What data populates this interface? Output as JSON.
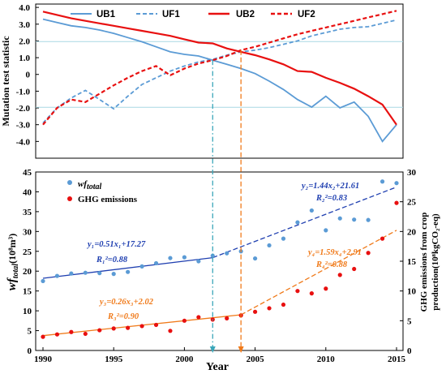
{
  "chart_data": [
    {
      "type": "line",
      "ylabel": "Mutation test statistic",
      "ylim": [
        -5,
        4.2
      ],
      "yticks": [
        "4.0",
        "3.0",
        "2.0",
        "1.0",
        "0",
        "-1.0",
        "-2.0",
        "-3.0",
        "-4.0"
      ],
      "yticks_values": [
        4,
        3,
        2,
        1,
        0,
        -1,
        -2,
        -3,
        -4
      ],
      "critical_lines": [
        1.96,
        -1.96
      ],
      "x": [
        1990,
        1991,
        1992,
        1993,
        1994,
        1995,
        1996,
        1997,
        1998,
        1999,
        2000,
        2001,
        2002,
        2003,
        2004,
        2005,
        2006,
        2007,
        2008,
        2009,
        2010,
        2011,
        2012,
        2013,
        2014,
        2015
      ],
      "legend_position": "top",
      "series": [
        {
          "name": "UB1",
          "color": "#5b9bd5",
          "dash": false,
          "values": [
            3.3,
            3.1,
            2.9,
            2.8,
            2.65,
            2.45,
            2.2,
            1.95,
            1.65,
            1.35,
            1.2,
            1.1,
            0.85,
            0.6,
            0.35,
            0.05,
            -0.4,
            -0.9,
            -1.5,
            -1.95,
            -1.3,
            -2.0,
            -1.65,
            -2.5,
            -4.0,
            -3.0
          ]
        },
        {
          "name": "UF1",
          "color": "#5b9bd5",
          "dash": true,
          "values": [
            -2.9,
            -2.0,
            -1.4,
            -0.95,
            -1.5,
            -2.05,
            -1.3,
            -0.6,
            -0.2,
            0.2,
            0.5,
            0.75,
            0.9,
            1.15,
            1.35,
            1.45,
            1.6,
            1.8,
            2.0,
            2.3,
            2.5,
            2.7,
            2.8,
            2.85,
            3.05,
            3.25
          ]
        },
        {
          "name": "UB2",
          "color": "#e81010",
          "dash": false,
          "values": [
            3.75,
            3.55,
            3.35,
            3.2,
            3.05,
            2.9,
            2.75,
            2.6,
            2.45,
            2.3,
            2.1,
            1.9,
            1.85,
            1.55,
            1.35,
            1.15,
            0.9,
            0.6,
            0.2,
            0.15,
            -0.2,
            -0.5,
            -0.85,
            -1.3,
            -1.8,
            -3.0
          ]
        },
        {
          "name": "UF2",
          "color": "#e81010",
          "dash": true,
          "values": [
            -3.0,
            -2.0,
            -1.5,
            -1.65,
            -1.15,
            -0.65,
            -0.2,
            0.2,
            0.5,
            -0.05,
            0.35,
            0.65,
            0.85,
            1.1,
            1.45,
            1.65,
            1.9,
            2.15,
            2.4,
            2.6,
            2.8,
            3.0,
            3.2,
            3.4,
            3.6,
            3.8
          ]
        }
      ]
    },
    {
      "type": "scatter",
      "xlabel": "Year",
      "xlim": [
        1990,
        2015
      ],
      "xticks": [
        1990,
        1995,
        2000,
        2005,
        2010,
        2015
      ],
      "ylabel_main": "wf",
      "ylabel_sub": "total",
      "ylabel_unit": "(10⁸m³)",
      "ylim": [
        0,
        45
      ],
      "yticks": [
        0,
        5,
        10,
        15,
        20,
        25,
        30,
        35,
        40,
        45
      ],
      "y2label_line1": "GHG emissions from crop",
      "y2label_line2": "production(10⁸kgCO₂-eq)",
      "y2lim": [
        0,
        30
      ],
      "y2ticks": [
        0,
        5,
        10,
        15,
        20,
        25,
        30
      ],
      "legend_position": "top-left",
      "change_points": [
        2002,
        2004
      ],
      "series": [
        {
          "name_main": "wf",
          "name_sub": "total",
          "axis": "left",
          "color": "#5b9bd5",
          "x": [
            1990,
            1991,
            1992,
            1993,
            1994,
            1995,
            1996,
            1997,
            1998,
            1999,
            2000,
            2001,
            2002,
            2003,
            2004,
            2005,
            2006,
            2007,
            2008,
            2009,
            2010,
            2011,
            2012,
            2013,
            2014,
            2015
          ],
          "values": [
            17.5,
            18.8,
            19.4,
            19.6,
            19.5,
            19.3,
            19.8,
            21.2,
            22.0,
            23.3,
            23.5,
            22.5,
            23.9,
            24.5,
            25.0,
            23.2,
            26.5,
            28.2,
            32.3,
            35.3,
            30.3,
            33.3,
            33.0,
            32.9,
            42.6,
            42.2
          ]
        },
        {
          "name": "GHG emissions",
          "axis": "right",
          "color": "#e81010",
          "x": [
            1990,
            1991,
            1992,
            1993,
            1994,
            1995,
            1996,
            1997,
            1998,
            1999,
            2000,
            2001,
            2002,
            2003,
            2004,
            2005,
            2006,
            2007,
            2008,
            2009,
            2010,
            2011,
            2012,
            2013,
            2014,
            2015
          ],
          "values": [
            2.3,
            2.7,
            3.1,
            2.8,
            3.4,
            3.7,
            3.8,
            4.1,
            4.3,
            3.3,
            5.0,
            5.6,
            5.2,
            5.4,
            5.9,
            6.5,
            7.1,
            7.7,
            10.0,
            9.6,
            10.4,
            12.7,
            13.7,
            16.4,
            18.8,
            24.8
          ]
        }
      ],
      "fits": [
        {
          "axis": "left",
          "color": "#1f3fb0",
          "dash": false,
          "x": [
            1990,
            2002
          ],
          "y": [
            18.2,
            23.4
          ]
        },
        {
          "axis": "left",
          "color": "#1f3fb0",
          "dash": true,
          "x": [
            2002,
            2015
          ],
          "y": [
            23.4,
            41.2
          ]
        },
        {
          "axis": "right",
          "color": "#f07a1a",
          "dash": false,
          "x": [
            1990,
            2004
          ],
          "y": [
            2.5,
            6.0
          ]
        },
        {
          "axis": "right",
          "color": "#f07a1a",
          "dash": true,
          "x": [
            2004,
            2015
          ],
          "y": [
            6.0,
            20.2
          ]
        }
      ],
      "annotations": {
        "eq1": "y₁=0.51x₁+17.27",
        "r1": "R₁²=0.88",
        "eq2": "y₂=1.44x₂+21.61",
        "r2": "R₂²=0.83",
        "eq3": "y₃=0.26x₃+2.02",
        "r3": "R₃²=0.90",
        "eq4": "y₄=1.59x₄+2.91",
        "r4": "R₄²=0.88"
      }
    }
  ]
}
